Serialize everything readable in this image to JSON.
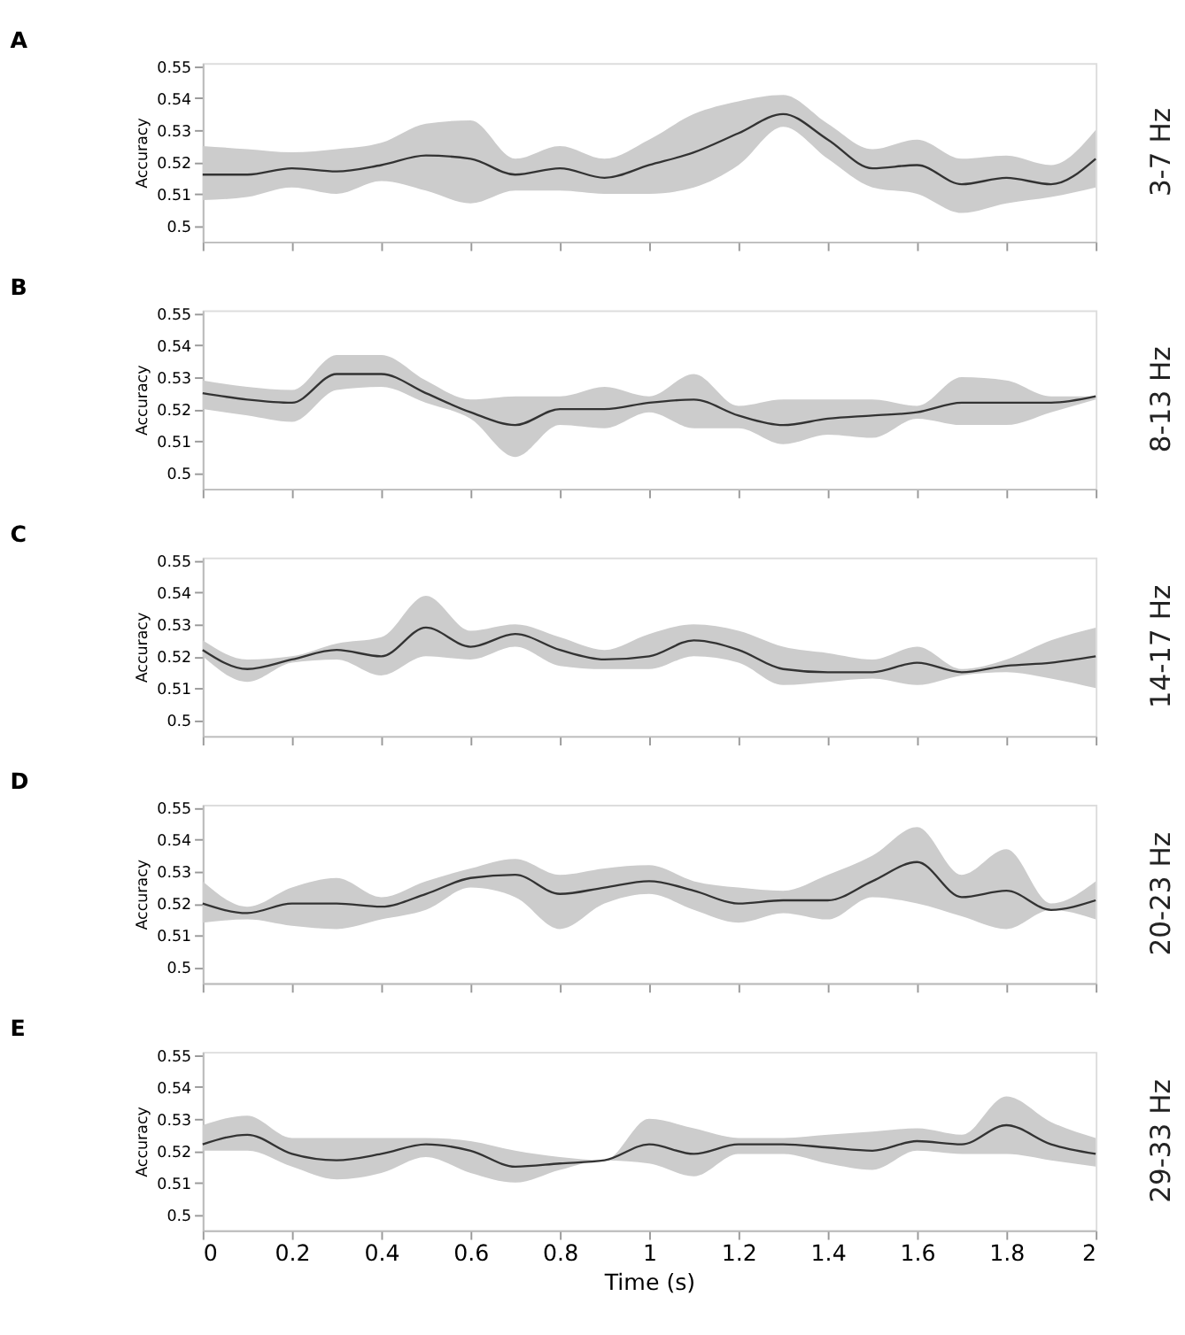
{
  "chart_data": [
    {
      "type": "line",
      "title": "A",
      "annotations": [
        "3-7 Hz"
      ],
      "ylabel": "Accuracy",
      "tick_labels": "y",
      "grid": false,
      "xlim": [
        0,
        2
      ],
      "xticks": [
        0,
        0.2,
        0.4,
        0.6,
        0.8,
        1,
        1.2,
        1.4,
        1.6,
        1.8,
        2
      ],
      "ylim": [
        0.495,
        0.551
      ],
      "yticks": [
        0.5,
        0.51,
        0.52,
        0.53,
        0.54,
        0.55
      ],
      "x": [
        0,
        0.1,
        0.2,
        0.3,
        0.4,
        0.5,
        0.6,
        0.7,
        0.8,
        0.9,
        1,
        1.1,
        1.2,
        1.3,
        1.4,
        1.5,
        1.6,
        1.7,
        1.8,
        1.9,
        2
      ],
      "series": [
        {
          "color": "#333333",
          "values": [
            0.516,
            0.516,
            0.518,
            0.517,
            0.519,
            0.522,
            0.521,
            0.516,
            0.518,
            0.515,
            0.519,
            0.523,
            0.529,
            0.535,
            0.527,
            0.518,
            0.519,
            0.513,
            0.515,
            0.513,
            0.521
          ],
          "upper": [
            0.525,
            0.524,
            0.523,
            0.524,
            0.526,
            0.532,
            0.533,
            0.521,
            0.525,
            0.521,
            0.527,
            0.535,
            0.539,
            0.541,
            0.532,
            0.524,
            0.527,
            0.521,
            0.522,
            0.519,
            0.53
          ],
          "lower": [
            0.508,
            0.509,
            0.512,
            0.51,
            0.514,
            0.511,
            0.507,
            0.511,
            0.511,
            0.51,
            0.51,
            0.512,
            0.519,
            0.531,
            0.521,
            0.512,
            0.51,
            0.504,
            0.507,
            0.509,
            0.512
          ]
        }
      ]
    },
    {
      "type": "line",
      "title": "B",
      "annotations": [
        "8-13 Hz"
      ],
      "ylabel": "Accuracy",
      "tick_labels": "y",
      "grid": false,
      "xlim": [
        0,
        2
      ],
      "xticks": [
        0,
        0.2,
        0.4,
        0.6,
        0.8,
        1,
        1.2,
        1.4,
        1.6,
        1.8,
        2
      ],
      "ylim": [
        0.495,
        0.551
      ],
      "yticks": [
        0.5,
        0.51,
        0.52,
        0.53,
        0.54,
        0.55
      ],
      "x": [
        0,
        0.1,
        0.2,
        0.3,
        0.4,
        0.5,
        0.6,
        0.7,
        0.8,
        0.9,
        1,
        1.1,
        1.2,
        1.3,
        1.4,
        1.5,
        1.6,
        1.7,
        1.8,
        1.9,
        2
      ],
      "series": [
        {
          "color": "#333333",
          "values": [
            0.525,
            0.523,
            0.522,
            0.531,
            0.531,
            0.525,
            0.519,
            0.515,
            0.52,
            0.52,
            0.522,
            0.523,
            0.518,
            0.515,
            0.517,
            0.518,
            0.519,
            0.522,
            0.522,
            0.522,
            0.524
          ],
          "upper": [
            0.529,
            0.527,
            0.526,
            0.537,
            0.537,
            0.529,
            0.523,
            0.524,
            0.524,
            0.527,
            0.524,
            0.531,
            0.521,
            0.523,
            0.523,
            0.523,
            0.521,
            0.53,
            0.529,
            0.524,
            0.524
          ],
          "lower": [
            0.52,
            0.518,
            0.516,
            0.526,
            0.527,
            0.522,
            0.517,
            0.505,
            0.515,
            0.514,
            0.519,
            0.514,
            0.514,
            0.509,
            0.512,
            0.511,
            0.517,
            0.515,
            0.515,
            0.519,
            0.523
          ]
        }
      ]
    },
    {
      "type": "line",
      "title": "C",
      "annotations": [
        "14-17 Hz"
      ],
      "ylabel": "Accuracy",
      "tick_labels": "y",
      "grid": false,
      "xlim": [
        0,
        2
      ],
      "xticks": [
        0,
        0.2,
        0.4,
        0.6,
        0.8,
        1,
        1.2,
        1.4,
        1.6,
        1.8,
        2
      ],
      "ylim": [
        0.495,
        0.551
      ],
      "yticks": [
        0.5,
        0.51,
        0.52,
        0.53,
        0.54,
        0.55
      ],
      "x": [
        0,
        0.1,
        0.2,
        0.3,
        0.4,
        0.5,
        0.6,
        0.7,
        0.8,
        0.9,
        1,
        1.1,
        1.2,
        1.3,
        1.4,
        1.5,
        1.6,
        1.7,
        1.8,
        1.9,
        2
      ],
      "series": [
        {
          "color": "#333333",
          "values": [
            0.522,
            0.516,
            0.519,
            0.522,
            0.52,
            0.529,
            0.523,
            0.527,
            0.522,
            0.519,
            0.52,
            0.525,
            0.522,
            0.516,
            0.515,
            0.515,
            0.518,
            0.515,
            0.517,
            0.518,
            0.52
          ],
          "upper": [
            0.525,
            0.519,
            0.52,
            0.524,
            0.526,
            0.539,
            0.528,
            0.53,
            0.526,
            0.522,
            0.527,
            0.53,
            0.528,
            0.523,
            0.521,
            0.519,
            0.523,
            0.516,
            0.519,
            0.525,
            0.529
          ],
          "lower": [
            0.52,
            0.512,
            0.518,
            0.519,
            0.514,
            0.52,
            0.519,
            0.523,
            0.517,
            0.516,
            0.516,
            0.52,
            0.518,
            0.511,
            0.512,
            0.513,
            0.511,
            0.514,
            0.515,
            0.513,
            0.51
          ]
        }
      ]
    },
    {
      "type": "line",
      "title": "D",
      "annotations": [
        "20-23 Hz"
      ],
      "ylabel": "Accuracy",
      "tick_labels": "y",
      "grid": false,
      "xlim": [
        0,
        2
      ],
      "xticks": [
        0,
        0.2,
        0.4,
        0.6,
        0.8,
        1,
        1.2,
        1.4,
        1.6,
        1.8,
        2
      ],
      "ylim": [
        0.495,
        0.551
      ],
      "yticks": [
        0.5,
        0.51,
        0.52,
        0.53,
        0.54,
        0.55
      ],
      "x": [
        0,
        0.1,
        0.2,
        0.3,
        0.4,
        0.5,
        0.6,
        0.7,
        0.8,
        0.9,
        1,
        1.1,
        1.2,
        1.3,
        1.4,
        1.5,
        1.6,
        1.7,
        1.8,
        1.9,
        2
      ],
      "series": [
        {
          "color": "#333333",
          "values": [
            0.52,
            0.517,
            0.52,
            0.52,
            0.519,
            0.523,
            0.528,
            0.529,
            0.523,
            0.525,
            0.527,
            0.524,
            0.52,
            0.521,
            0.521,
            0.527,
            0.533,
            0.522,
            0.524,
            0.518,
            0.521
          ],
          "upper": [
            0.527,
            0.519,
            0.525,
            0.528,
            0.522,
            0.527,
            0.531,
            0.534,
            0.529,
            0.531,
            0.532,
            0.527,
            0.525,
            0.524,
            0.529,
            0.535,
            0.544,
            0.529,
            0.537,
            0.52,
            0.527
          ],
          "lower": [
            0.514,
            0.515,
            0.513,
            0.512,
            0.515,
            0.518,
            0.525,
            0.522,
            0.512,
            0.52,
            0.523,
            0.518,
            0.514,
            0.517,
            0.515,
            0.522,
            0.52,
            0.516,
            0.512,
            0.518,
            0.515
          ]
        }
      ]
    },
    {
      "type": "line",
      "title": "E",
      "annotations": [
        "29-33 Hz"
      ],
      "ylabel": "Accuracy",
      "xlabel": "Time (s)",
      "grid": false,
      "xlim": [
        0,
        2
      ],
      "xticks": [
        0,
        0.2,
        0.4,
        0.6,
        0.8,
        1,
        1.2,
        1.4,
        1.6,
        1.8,
        2
      ],
      "ylim": [
        0.495,
        0.551
      ],
      "yticks": [
        0.5,
        0.51,
        0.52,
        0.53,
        0.54,
        0.55
      ],
      "x": [
        0,
        0.1,
        0.2,
        0.3,
        0.4,
        0.5,
        0.6,
        0.7,
        0.8,
        0.9,
        1,
        1.1,
        1.2,
        1.3,
        1.4,
        1.5,
        1.6,
        1.7,
        1.8,
        1.9,
        2
      ],
      "series": [
        {
          "color": "#333333",
          "values": [
            0.522,
            0.525,
            0.519,
            0.517,
            0.519,
            0.522,
            0.52,
            0.515,
            0.516,
            0.517,
            0.522,
            0.519,
            0.522,
            0.522,
            0.521,
            0.52,
            0.523,
            0.522,
            0.528,
            0.522,
            0.519
          ],
          "upper": [
            0.528,
            0.531,
            0.524,
            0.524,
            0.524,
            0.524,
            0.523,
            0.52,
            0.518,
            0.517,
            0.53,
            0.527,
            0.524,
            0.524,
            0.525,
            0.526,
            0.527,
            0.525,
            0.537,
            0.529,
            0.524
          ],
          "lower": [
            0.52,
            0.52,
            0.515,
            0.511,
            0.513,
            0.518,
            0.513,
            0.51,
            0.514,
            0.517,
            0.516,
            0.512,
            0.519,
            0.519,
            0.516,
            0.514,
            0.52,
            0.519,
            0.519,
            0.517,
            0.515
          ]
        }
      ]
    }
  ]
}
